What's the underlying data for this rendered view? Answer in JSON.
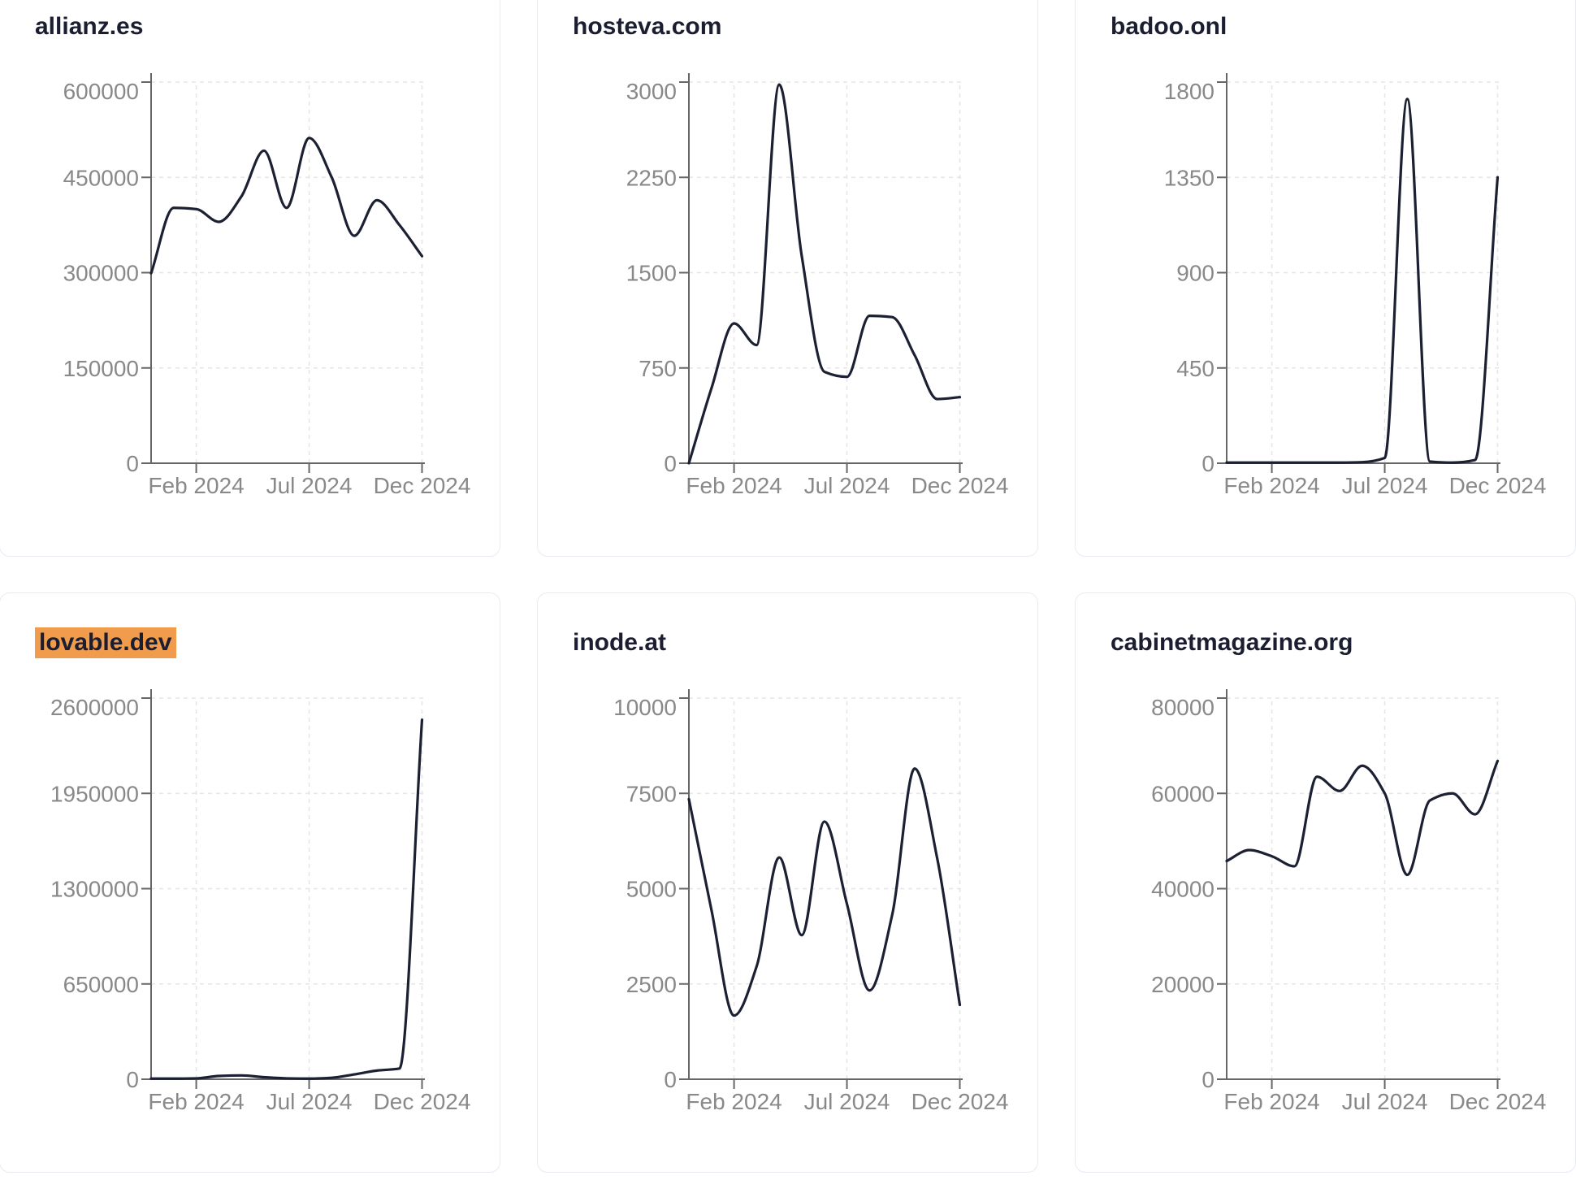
{
  "page": {
    "background": "#ffffff",
    "layout": "3x2-grid-of-domain-traffic-cards"
  },
  "style": {
    "line_color": "#1b2032",
    "axis_color": "#666666",
    "tick_label_color": "#898989",
    "grid_color": "#e5e5e5",
    "card_border_color": "#e8ebf1",
    "title_color": "#1a1e30",
    "highlight_color": "#f09c4c"
  },
  "chart_data": [
    {
      "type": "line",
      "title": "allianz.es",
      "highlighted": false,
      "legend": "none",
      "grid": true,
      "xlabel": "",
      "ylabel": "",
      "xticks": [
        {
          "label": "Feb 2024",
          "month": 2
        },
        {
          "label": "Jul 2024",
          "month": 7
        },
        {
          "label": "Dec 2024",
          "month": 12
        }
      ],
      "months": [
        "Dec 2023",
        "Jan 2024",
        "Feb 2024",
        "Mar 2024",
        "Apr 2024",
        "May 2024",
        "Jun 2024",
        "Jul 2024",
        "Aug 2024",
        "Sep 2024",
        "Oct 2024",
        "Nov 2024",
        "Dec 2024"
      ],
      "values": [
        299000,
        402000,
        400000,
        380000,
        420000,
        492000,
        402000,
        512000,
        450000,
        358000,
        414000,
        375000,
        326000
      ],
      "ylim": [
        0,
        600000
      ],
      "yticks": [
        "0",
        "150000",
        "300000",
        "450000",
        "600000"
      ]
    },
    {
      "type": "line",
      "title": "hosteva.com",
      "highlighted": false,
      "legend": "none",
      "grid": true,
      "xlabel": "",
      "ylabel": "",
      "xticks": [
        {
          "label": "Feb 2024",
          "month": 2
        },
        {
          "label": "Jul 2024",
          "month": 7
        },
        {
          "label": "Dec 2024",
          "month": 12
        }
      ],
      "months": [
        "Dec 2023",
        "Jan 2024",
        "Feb 2024",
        "Mar 2024",
        "Apr 2024",
        "May 2024",
        "Jun 2024",
        "Jul 2024",
        "Aug 2024",
        "Sep 2024",
        "Oct 2024",
        "Nov 2024",
        "Dec 2024"
      ],
      "values": [
        0,
        590,
        1100,
        930,
        2980,
        1630,
        720,
        680,
        1160,
        1150,
        850,
        505,
        520
      ],
      "ylim": [
        0,
        3000
      ],
      "yticks": [
        "0",
        "750",
        "1500",
        "2250",
        "3000"
      ]
    },
    {
      "type": "line",
      "title": "badoo.onl",
      "highlighted": false,
      "legend": "none",
      "grid": true,
      "xlabel": "",
      "ylabel": "",
      "xticks": [
        {
          "label": "Feb 2024",
          "month": 2
        },
        {
          "label": "Jul 2024",
          "month": 7
        },
        {
          "label": "Dec 2024",
          "month": 12
        }
      ],
      "months": [
        "Dec 2023",
        "Jan 2024",
        "Feb 2024",
        "Mar 2024",
        "Apr 2024",
        "May 2024",
        "Jun 2024",
        "Jul 2024",
        "Aug 2024",
        "Sep 2024",
        "Oct 2024",
        "Nov 2024",
        "Dec 2024"
      ],
      "values": [
        3,
        3,
        3,
        3,
        3,
        3,
        5,
        25,
        1720,
        8,
        3,
        15,
        1350
      ],
      "ylim": [
        0,
        1800
      ],
      "yticks": [
        "0",
        "450",
        "900",
        "1350",
        "1800"
      ]
    },
    {
      "type": "line",
      "title": "lovable.dev",
      "highlighted": true,
      "legend": "none",
      "grid": true,
      "xlabel": "",
      "ylabel": "",
      "xticks": [
        {
          "label": "Feb 2024",
          "month": 2
        },
        {
          "label": "Jul 2024",
          "month": 7
        },
        {
          "label": "Dec 2024",
          "month": 12
        }
      ],
      "months": [
        "Dec 2023",
        "Jan 2024",
        "Feb 2024",
        "Mar 2024",
        "Apr 2024",
        "May 2024",
        "Jun 2024",
        "Jul 2024",
        "Aug 2024",
        "Sep 2024",
        "Oct 2024",
        "Nov 2024",
        "Dec 2024"
      ],
      "values": [
        4000,
        4000,
        6000,
        22000,
        26000,
        14000,
        6000,
        4000,
        10000,
        33000,
        59000,
        73000,
        2452000
      ],
      "ylim": [
        0,
        2600000
      ],
      "yticks": [
        "0",
        "650000",
        "1300000",
        "1950000",
        "2600000"
      ]
    },
    {
      "type": "line",
      "title": "inode.at",
      "highlighted": false,
      "legend": "none",
      "grid": true,
      "xlabel": "",
      "ylabel": "",
      "xticks": [
        {
          "label": "Feb 2024",
          "month": 2
        },
        {
          "label": "Jul 2024",
          "month": 7
        },
        {
          "label": "Dec 2024",
          "month": 12
        }
      ],
      "months": [
        "Dec 2023",
        "Jan 2024",
        "Feb 2024",
        "Mar 2024",
        "Apr 2024",
        "May 2024",
        "Jun 2024",
        "Jul 2024",
        "Aug 2024",
        "Sep 2024",
        "Oct 2024",
        "Nov 2024",
        "Dec 2024"
      ],
      "values": [
        7350,
        4440,
        1670,
        2960,
        5820,
        3780,
        6760,
        4600,
        2330,
        4300,
        8150,
        5790,
        1950
      ],
      "ylim": [
        0,
        10000
      ],
      "yticks": [
        "0",
        "2500",
        "5000",
        "7500",
        "10000"
      ]
    },
    {
      "type": "line",
      "title": "cabinetmagazine.org",
      "highlighted": false,
      "legend": "none",
      "grid": true,
      "xlabel": "",
      "ylabel": "",
      "xticks": [
        {
          "label": "Feb 2024",
          "month": 2
        },
        {
          "label": "Jul 2024",
          "month": 7
        },
        {
          "label": "Dec 2024",
          "month": 12
        }
      ],
      "months": [
        "Dec 2023",
        "Jan 2024",
        "Feb 2024",
        "Mar 2024",
        "Apr 2024",
        "May 2024",
        "Jun 2024",
        "Jul 2024",
        "Aug 2024",
        "Sep 2024",
        "Oct 2024",
        "Nov 2024",
        "Dec 2024"
      ],
      "values": [
        45800,
        48100,
        46800,
        44700,
        63500,
        60500,
        65800,
        60000,
        42900,
        58500,
        60000,
        55600,
        66800
      ],
      "ylim": [
        0,
        80000
      ],
      "yticks": [
        "0",
        "20000",
        "40000",
        "60000",
        "80000"
      ]
    }
  ]
}
